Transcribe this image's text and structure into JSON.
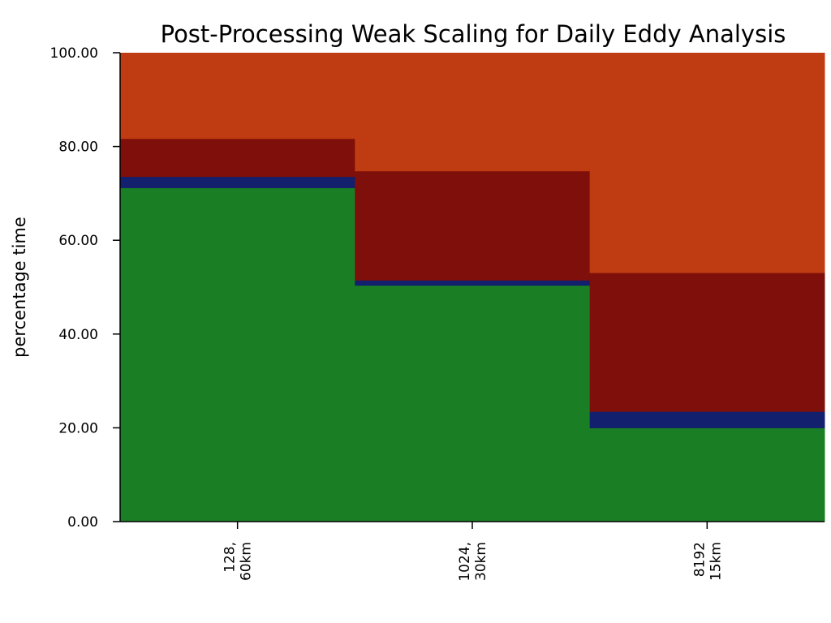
{
  "chart_data": {
    "type": "bar",
    "subtype": "stacked-100-percent",
    "title": "Post-Processing Weak Scaling for Daily Eddy Analysis",
    "xlabel": "",
    "ylabel": "percentage time",
    "ylim": [
      0,
      100
    ],
    "yticks": [
      "0.00",
      "20.00",
      "40.00",
      "60.00",
      "80.00",
      "100.00"
    ],
    "grid": false,
    "legend": "none",
    "categories": [
      [
        "128,",
        "60km"
      ],
      [
        "1024,",
        "30km"
      ],
      [
        "8192",
        "15km"
      ]
    ],
    "series": [
      {
        "color": "#1a7f24",
        "values": [
          71.2,
          50.4,
          20.0
        ]
      },
      {
        "color": "#13206e",
        "values": [
          2.4,
          1.1,
          3.5
        ]
      },
      {
        "color": "#7f0f0a",
        "values": [
          8.1,
          23.3,
          29.6
        ]
      },
      {
        "color": "#bf3b12",
        "values": [
          18.3,
          25.2,
          46.9
        ]
      }
    ]
  }
}
